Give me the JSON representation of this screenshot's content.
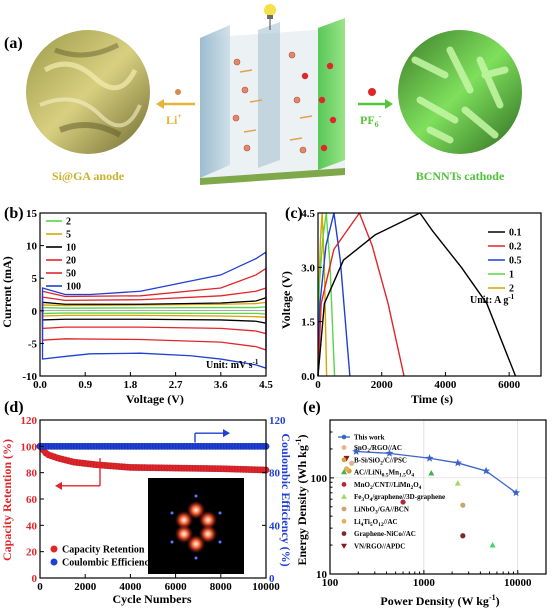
{
  "panel_labels": {
    "a": "(a)",
    "b": "(b)",
    "c": "(c)",
    "d": "(d)",
    "e": "(e)"
  },
  "schematic": {
    "anode_label": "Si@GA anode",
    "cathode_label": "BCNNTs cathode",
    "cation": "Li",
    "cation_charge": "+",
    "anion": "PF",
    "anion_sub": "6",
    "anion_charge": "-"
  },
  "colors": {
    "black": "#000000",
    "red": "#e0262b",
    "blue": "#1f3fd6",
    "green": "#59d64a",
    "yellow": "#d9a300",
    "eblue": "#3a64c8",
    "gold_text": "#c9b22e",
    "green_text": "#4fc23a"
  },
  "chart_data": [
    {
      "panel": "b",
      "type": "line",
      "xlabel": "Voltage (V)",
      "ylabel": "Current (mA)",
      "xlim": [
        0,
        4.5
      ],
      "ylim": [
        -10,
        15
      ],
      "xticks": [
        "0.0",
        "0.9",
        "1.8",
        "2.7",
        "3.6",
        "4.5"
      ],
      "yticks": [
        "-10",
        "-5",
        "0",
        "5",
        "10",
        "15"
      ],
      "legend_title": "",
      "unit_note": "Unit: mV s",
      "unit_note_sup": "-1",
      "series": [
        {
          "name": "2",
          "color": "#59d64a",
          "upper": [
            [
              0.05,
              0.5
            ],
            [
              0.5,
              0.4
            ],
            [
              2.0,
              0.45
            ],
            [
              3.6,
              0.5
            ],
            [
              4.3,
              0.5
            ],
            [
              4.5,
              0.6
            ]
          ],
          "lower": [
            [
              0.05,
              -0.4
            ],
            [
              0.5,
              -0.35
            ],
            [
              2.0,
              -0.35
            ],
            [
              3.6,
              -0.4
            ],
            [
              4.3,
              -0.4
            ],
            [
              4.5,
              -0.5
            ]
          ]
        },
        {
          "name": "5",
          "color": "#d9a300",
          "upper": [
            [
              0.05,
              0.9
            ],
            [
              0.5,
              0.8
            ],
            [
              2.0,
              0.9
            ],
            [
              3.6,
              1.0
            ],
            [
              4.3,
              1.1
            ],
            [
              4.5,
              1.3
            ]
          ],
          "lower": [
            [
              0.05,
              -0.8
            ],
            [
              0.5,
              -0.7
            ],
            [
              2.0,
              -0.7
            ],
            [
              3.6,
              -0.8
            ],
            [
              4.3,
              -0.9
            ],
            [
              4.5,
              -1.0
            ]
          ]
        },
        {
          "name": "10",
          "color": "#000000",
          "upper": [
            [
              0.05,
              1.3
            ],
            [
              0.5,
              1.0
            ],
            [
              2.0,
              1.0
            ],
            [
              3.6,
              1.2
            ],
            [
              4.3,
              1.5
            ],
            [
              4.5,
              2.0
            ]
          ],
          "lower": [
            [
              0.05,
              -1.4
            ],
            [
              0.5,
              -1.3
            ],
            [
              2.0,
              -1.3
            ],
            [
              3.6,
              -1.4
            ],
            [
              4.3,
              -1.6
            ],
            [
              4.5,
              -1.9
            ]
          ]
        },
        {
          "name": "20",
          "color": "#e0262b",
          "upper": [
            [
              0.05,
              2.1
            ],
            [
              0.5,
              1.6
            ],
            [
              2.0,
              1.7
            ],
            [
              3.6,
              2.3
            ],
            [
              4.3,
              3.0
            ],
            [
              4.5,
              3.5
            ]
          ],
          "lower": [
            [
              0.05,
              -2.7
            ],
            [
              0.5,
              -2.5
            ],
            [
              2.0,
              -2.5
            ],
            [
              3.6,
              -2.7
            ],
            [
              4.3,
              -3.1
            ],
            [
              4.5,
              -3.5
            ]
          ]
        },
        {
          "name": "50",
          "color": "#e0262b",
          "upper": [
            [
              0.05,
              3.0
            ],
            [
              0.5,
              2.2
            ],
            [
              2.0,
              2.3
            ],
            [
              3.6,
              3.5
            ],
            [
              4.3,
              5.5
            ],
            [
              4.5,
              6.5
            ]
          ],
          "lower": [
            [
              0.05,
              -4.5
            ],
            [
              0.5,
              -4.3
            ],
            [
              2.0,
              -4.4
            ],
            [
              3.6,
              -4.8
            ],
            [
              4.3,
              -5.5
            ],
            [
              4.5,
              -6.0
            ]
          ]
        },
        {
          "name": "100",
          "color": "#1f3fd6",
          "upper": [
            [
              0.05,
              3.5
            ],
            [
              0.5,
              2.5
            ],
            [
              1.0,
              2.5
            ],
            [
              2.0,
              3.0
            ],
            [
              3.6,
              5.5
            ],
            [
              4.3,
              8.0
            ],
            [
              4.5,
              9.0
            ]
          ],
          "lower": [
            [
              0.05,
              -7.4
            ],
            [
              0.5,
              -7.0
            ],
            [
              1.0,
              -6.6
            ],
            [
              2.0,
              -6.5
            ],
            [
              3.0,
              -6.9
            ],
            [
              3.6,
              -7.4
            ],
            [
              4.3,
              -8.3
            ],
            [
              4.5,
              -8.8
            ]
          ]
        }
      ]
    },
    {
      "panel": "c",
      "type": "line",
      "xlabel": "Time (s)",
      "ylabel": "Voltage (V)",
      "xlim": [
        0,
        7000
      ],
      "ylim": [
        0,
        4.5
      ],
      "xticks": [
        "0",
        "2000",
        "4000",
        "6000"
      ],
      "yticks": [
        "0.0",
        "1.5",
        "3.0",
        "4.5"
      ],
      "unit_note": "Unit: A g",
      "unit_note_sup": "-1",
      "series": [
        {
          "name": "0.1",
          "color": "#000000",
          "points": [
            [
              0,
              0
            ],
            [
              200,
              2.0
            ],
            [
              800,
              3.2
            ],
            [
              1800,
              3.9
            ],
            [
              3200,
              4.5
            ],
            [
              3600,
              4.0
            ],
            [
              4500,
              3.0
            ],
            [
              5300,
              2.0
            ],
            [
              6200,
              0
            ]
          ]
        },
        {
          "name": "0.2",
          "color": "#e0262b",
          "points": [
            [
              0,
              0
            ],
            [
              100,
              2.0
            ],
            [
              500,
              3.5
            ],
            [
              1300,
              4.5
            ],
            [
              1700,
              3.6
            ],
            [
              2200,
              2.0
            ],
            [
              2700,
              0
            ]
          ]
        },
        {
          "name": "0.5",
          "color": "#1f3fd6",
          "points": [
            [
              0,
              0
            ],
            [
              60,
              2.0
            ],
            [
              250,
              3.6
            ],
            [
              500,
              4.5
            ],
            [
              700,
              3.2
            ],
            [
              1000,
              0
            ]
          ]
        },
        {
          "name": "1",
          "color": "#59d64a",
          "points": [
            [
              0,
              0
            ],
            [
              40,
              2.5
            ],
            [
              150,
              3.8
            ],
            [
              260,
              4.5
            ],
            [
              380,
              3.0
            ],
            [
              520,
              0
            ]
          ]
        },
        {
          "name": "2",
          "color": "#d9a300",
          "points": [
            [
              0,
              0
            ],
            [
              30,
              2.5
            ],
            [
              80,
              3.8
            ],
            [
              130,
              4.5
            ],
            [
              200,
              3.0
            ],
            [
              270,
              0
            ]
          ]
        }
      ]
    },
    {
      "panel": "d",
      "type": "scatter",
      "xlabel": "Cycle Numbers",
      "ylabel": "Capacity Retention (%)",
      "y2label": "Coulombic Efficiency (%)",
      "xlim": [
        0,
        10000
      ],
      "ylim": [
        0,
        120
      ],
      "y2lim": [
        0,
        120
      ],
      "xticks": [
        "0",
        "2000",
        "4000",
        "6000",
        "8000",
        "10000"
      ],
      "yticks": [
        "0",
        "20",
        "40",
        "60",
        "80",
        "100",
        "120"
      ],
      "y2ticks": [
        "0",
        "40",
        "80",
        "120"
      ],
      "series": [
        {
          "name": "Capacity Retention",
          "color": "#e0262b",
          "axis": "left",
          "points": [
            [
              0,
              100
            ],
            [
              300,
              94
            ],
            [
              800,
              91
            ],
            [
              1500,
              88
            ],
            [
              2500,
              86
            ],
            [
              4000,
              84
            ],
            [
              6000,
              83.5
            ],
            [
              8000,
              83
            ],
            [
              10000,
              82
            ]
          ]
        },
        {
          "name": "Coulombic Efficiency",
          "color": "#1f3fd6",
          "axis": "right",
          "points": [
            [
              0,
              100
            ],
            [
              2000,
              100
            ],
            [
              4000,
              100
            ],
            [
              6000,
              100
            ],
            [
              8000,
              100
            ],
            [
              10000,
              100
            ]
          ]
        }
      ]
    },
    {
      "panel": "e",
      "type": "scatter",
      "xlabel": "Power Density (W kg",
      "xlabel_sup": "-1",
      "ylabel": "Energy Density (Wh kg",
      "ylabel_sup": "-1",
      "xscale": "log",
      "yscale": "log",
      "xlim": [
        100,
        20000
      ],
      "ylim": [
        10,
        400
      ],
      "xticks": [
        "100",
        "1000",
        "10000"
      ],
      "yticks": [
        "10",
        "100"
      ],
      "this_work": {
        "name": "This work",
        "color": "#3a64c8",
        "points": [
          [
            190,
            188
          ],
          [
            430,
            180
          ],
          [
            1150,
            160
          ],
          [
            2300,
            143
          ],
          [
            4600,
            118
          ],
          [
            9600,
            70
          ]
        ]
      },
      "references": [
        {
          "name": "SnO2/RGO//AC",
          "color": "#e8b28c",
          "points": [
            [
              170,
              142
            ]
          ]
        },
        {
          "name": "B-Si/SiO2/C//PSC",
          "color": "#d6a037",
          "points": [
            [
              160,
              118
            ]
          ]
        },
        {
          "name": "AC//LiNi0.5Mn1.5O4",
          "color": "#45b04c",
          "points": [
            [
              1200,
              112
            ]
          ]
        },
        {
          "name": "MnO2/CNT//LiMn2O4",
          "color": "#b0283a",
          "points": [
            [
              600,
              56
            ]
          ]
        },
        {
          "name": "Fe3O4/graphene//3D-graphene",
          "color": "#a0d86a",
          "points": [
            [
              2300,
              88
            ]
          ]
        },
        {
          "name": "LiNbO3/GA//BCN",
          "color": "#c9a572",
          "points": [
            [
              2600,
              52
            ]
          ]
        },
        {
          "name": "Li4Ti5O12//AC",
          "color": "#e0b15a",
          "points": [
            [
              150,
              124
            ]
          ]
        },
        {
          "name": "Graphene-NiCo//AC",
          "color": "#7a2a2a",
          "points": [
            [
              2600,
              25
            ]
          ]
        },
        {
          "name": "VN/RGO//APDC",
          "color": "#8a1818",
          "points": [
            [
              150,
              160
            ]
          ]
        },
        {
          "name": "",
          "color": "#45d36e",
          "points": [
            [
              5400,
              20
            ]
          ]
        }
      ],
      "legend_labels": [
        {
          "pre": "SnO",
          "sub": "2",
          "post": "/RGO//AC"
        },
        {
          "pre": "B-Si/SiO",
          "sub": "2",
          "post": "/C//PSC"
        },
        {
          "pre": "AC//LiNi",
          "sub": "0.5",
          "mid": "Mn",
          "sub2": "1.5",
          "mid2": "O",
          "sub3": "4"
        },
        {
          "pre": "MnO",
          "sub": "2",
          "post": "/CNT//LiMn",
          "sub2": "2",
          "mid2": "O",
          "sub3": "4"
        },
        {
          "pre": "Fe",
          "sub": "3",
          "post": "O",
          "sub2": "4",
          "mid2": "/graphene//3D-graphene"
        },
        {
          "pre": "LiNbO",
          "sub": "3",
          "post": "/GA//BCN"
        },
        {
          "pre": "Li",
          "sub": "4",
          "post": "Ti",
          "sub2": "5",
          "mid2": "O",
          "sub3": "12",
          "post3": "//AC"
        },
        {
          "pre": "Graphene-NiCo//AC"
        },
        {
          "pre": "VN/RGO//APDC"
        }
      ]
    }
  ]
}
